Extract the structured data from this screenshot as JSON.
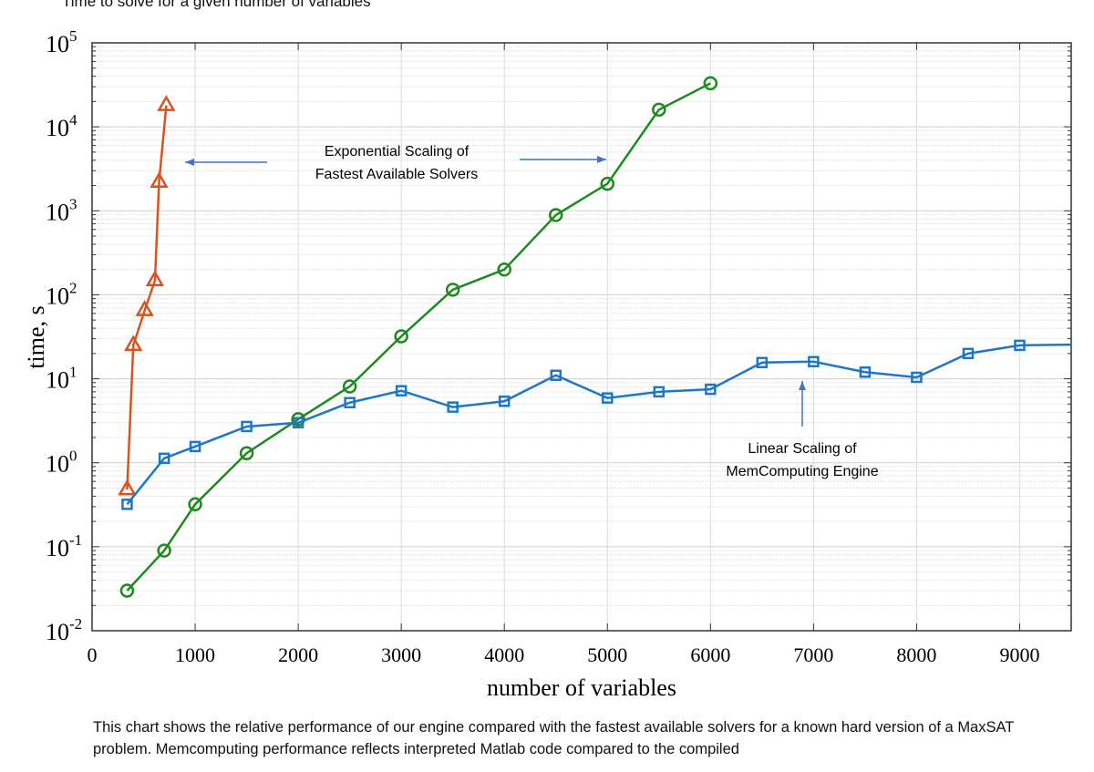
{
  "chart_data": {
    "type": "line",
    "title": "Time to solve for a given number of variables",
    "xlabel": "number of variables",
    "ylabel": "time, s",
    "xlim": [
      0,
      9500
    ],
    "ylim": [
      0.01,
      100000
    ],
    "yscale": "log",
    "grid": true,
    "x_ticks": [
      "0",
      "1000",
      "2000",
      "3000",
      "4000",
      "5000",
      "6000",
      "7000",
      "8000",
      "9000"
    ],
    "y_ticks": [
      {
        "base": "10",
        "exp": "-2"
      },
      {
        "base": "10",
        "exp": "-1"
      },
      {
        "base": "10",
        "exp": "0"
      },
      {
        "base": "10",
        "exp": "1"
      },
      {
        "base": "10",
        "exp": "2"
      },
      {
        "base": "10",
        "exp": "3"
      },
      {
        "base": "10",
        "exp": "4"
      },
      {
        "base": "10",
        "exp": "5"
      }
    ],
    "series": [
      {
        "marker": "triangle",
        "color": "#d9531e",
        "x": [
          340,
          400,
          510,
          610,
          650,
          720
        ],
        "y": [
          0.48,
          25,
          65,
          148,
          2200,
          18000
        ]
      },
      {
        "marker": "circle",
        "color": "#1f8a1f",
        "x": [
          340,
          700,
          1000,
          1500,
          2000,
          2500,
          3000,
          3500,
          4000,
          4500,
          5000,
          5500,
          6000
        ],
        "y": [
          0.03,
          0.09,
          0.32,
          1.3,
          3.3,
          8.1,
          32,
          115,
          200,
          890,
          2100,
          16000,
          33000
        ]
      },
      {
        "marker": "square",
        "color": "#1f77c4",
        "x": [
          340,
          700,
          1000,
          1500,
          2000,
          2500,
          3000,
          3500,
          4000,
          4500,
          5000,
          5500,
          6000,
          6500,
          7000,
          7500,
          8000,
          8500,
          9000
        ],
        "y": [
          0.32,
          1.13,
          1.56,
          2.7,
          3.0,
          5.2,
          7.2,
          4.6,
          5.4,
          11,
          5.9,
          7.0,
          7.5,
          15.6,
          16,
          12,
          10.4,
          20,
          25
        ],
        "line_end": {
          "x": 9500,
          "y": 25.5
        }
      }
    ],
    "annotations": {
      "exponential": [
        "Exponential Scaling of",
        "Fastest Available Solvers"
      ],
      "linear": [
        "Linear Scaling of",
        "MemComputing Engine"
      ],
      "arrow_color": "#4472c4"
    }
  },
  "caption": "This chart shows the relative performance of our engine compared with the fastest available solvers for a known hard version of a MaxSAT problem.  Memcomputing performance reflects interpreted Matlab code compared to the compiled"
}
